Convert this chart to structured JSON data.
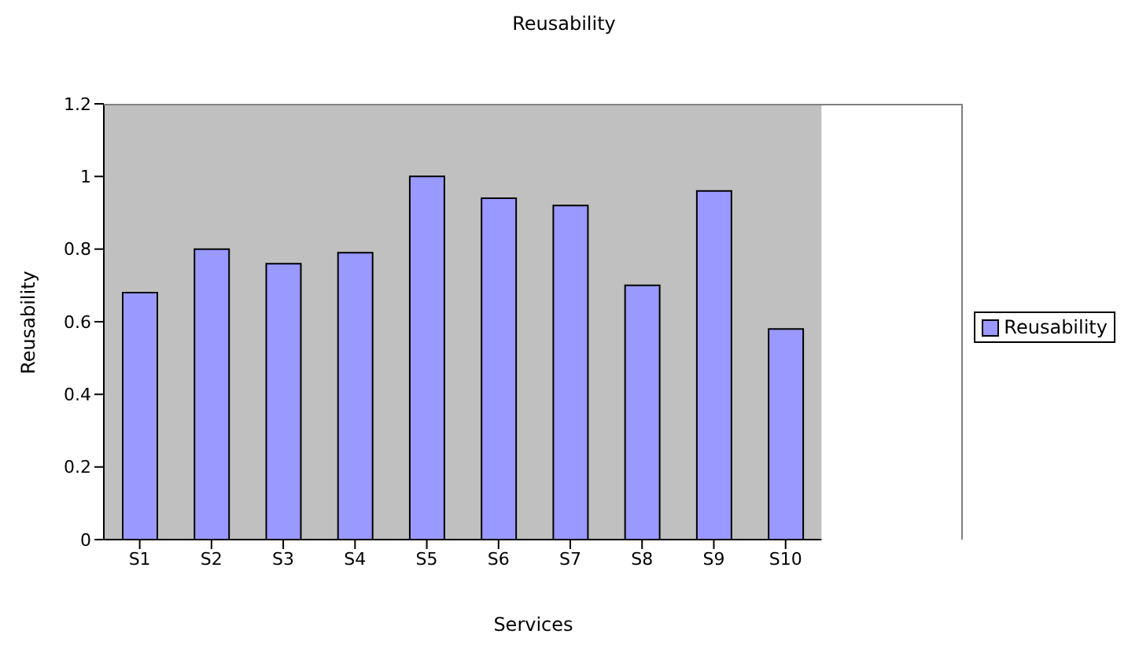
{
  "chart_data": {
    "type": "bar",
    "title": "Reusability",
    "xlabel": "Services",
    "ylabel": "Reusability",
    "categories": [
      "S1",
      "S2",
      "S3",
      "S4",
      "S5",
      "S6",
      "S7",
      "S8",
      "S9",
      "S10"
    ],
    "series": [
      {
        "name": "Reusability",
        "color": "#9999ff",
        "values": [
          0.68,
          0.8,
          0.76,
          0.79,
          1.0,
          0.94,
          0.92,
          0.7,
          0.96,
          0.58
        ]
      }
    ],
    "ylim": [
      0,
      1.2
    ],
    "yticks": [
      0,
      0.2,
      0.4,
      0.6,
      0.8,
      1,
      1.2
    ],
    "legend": "right"
  }
}
